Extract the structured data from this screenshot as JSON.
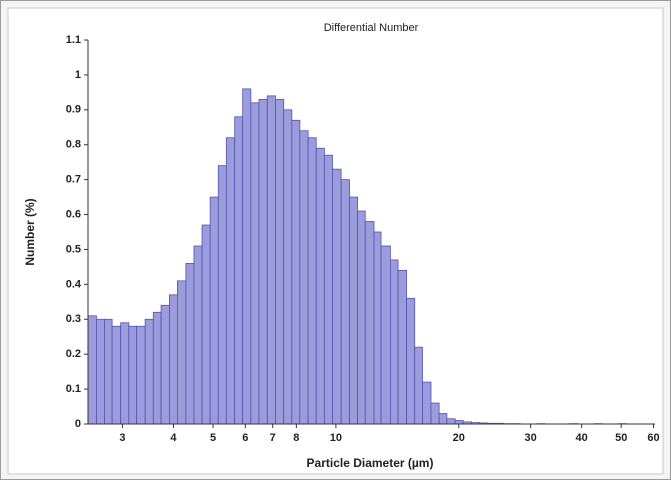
{
  "chart_data": {
    "type": "histogram",
    "title": "Differential Number",
    "x_label": "Particle Diameter (µm)",
    "y_label": "Number (%)",
    "xscale": "log",
    "color": "#9c9cdc",
    "edge_color": "#5252b4",
    "bins": [
      2.47,
      2.59,
      2.71,
      2.83,
      2.97,
      3.11,
      3.25,
      3.41,
      3.57,
      3.73,
      3.91,
      4.09,
      4.29,
      4.49,
      4.7,
      4.92,
      5.15,
      5.39,
      5.65,
      5.91,
      6.19,
      6.48,
      6.79,
      7.11,
      7.45,
      7.8,
      8.16,
      8.55,
      8.95,
      9.37,
      9.81,
      10.3,
      10.8,
      11.3,
      11.8,
      12.4,
      12.9,
      13.6,
      14.2,
      14.9,
      15.6,
      16.3,
      17.1,
      17.9,
      18.7,
      19.6,
      20.5,
      21.5,
      22.5,
      23.6,
      24.7,
      25.8,
      27.1,
      28.3,
      29.7,
      31.1,
      32.5,
      34.1,
      35.7,
      37.3,
      39.1,
      40.9,
      42.9,
      44.9,
      47.0,
      49.2,
      51.5,
      53.9,
      56.5,
      59.1
    ],
    "values": [
      0.31,
      0.3,
      0.3,
      0.28,
      0.29,
      0.28,
      0.28,
      0.3,
      0.32,
      0.34,
      0.37,
      0.41,
      0.46,
      0.51,
      0.57,
      0.65,
      0.74,
      0.82,
      0.88,
      0.96,
      0.92,
      0.93,
      0.94,
      0.93,
      0.9,
      0.87,
      0.84,
      0.82,
      0.79,
      0.77,
      0.73,
      0.7,
      0.65,
      0.61,
      0.58,
      0.55,
      0.51,
      0.47,
      0.44,
      0.36,
      0.22,
      0.12,
      0.06,
      0.03,
      0.015,
      0.01,
      0.006,
      0.004,
      0.003,
      0.002,
      0.002,
      0.001,
      0.001,
      0,
      0,
      0.001,
      0,
      0,
      0,
      0.001,
      0,
      0,
      0.001,
      0,
      0,
      0.001,
      0,
      0,
      0
    ],
    "xlim": [
      2.47,
      60.5
    ],
    "xticks": [
      3,
      4,
      5,
      6,
      7,
      8,
      10,
      20,
      30,
      40,
      50,
      60
    ],
    "ylim": [
      0,
      1.1
    ],
    "yticks": [
      0,
      0.1,
      0.2,
      0.3,
      0.4,
      0.5,
      0.6,
      0.7,
      0.8,
      0.9,
      1,
      1.1
    ]
  }
}
